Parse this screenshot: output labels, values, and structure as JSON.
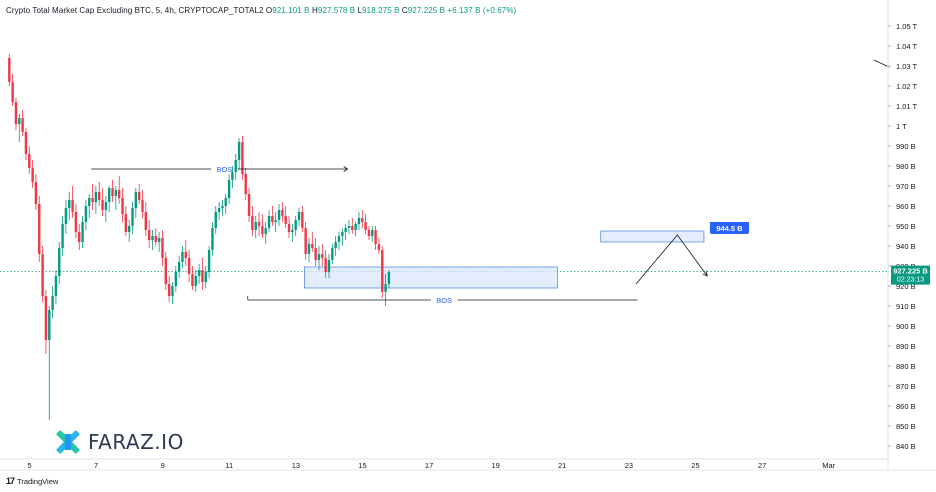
{
  "header": {
    "title": "Crypto Total Market Cap Excluding BTC, 5, 4h, CRYPTOCAP_TOTAL2",
    "o_label": "O",
    "o_value": "921.101 B",
    "h_label": "H",
    "h_value": "927.578 B",
    "l_label": "L",
    "l_value": "918.275 B",
    "c_label": "C",
    "c_value": "927.225 B",
    "change": "+6.137 B (+0.67%)"
  },
  "footer": {
    "brand": "TradingView"
  },
  "watermark": {
    "text": "FARAZ.IO"
  },
  "colors": {
    "up": "#089981",
    "down": "#f23645",
    "zone_fill": "#dbe7fb",
    "zone_stroke": "#4a7fe0",
    "price_tag": "#089981",
    "target_tag": "#2962ff"
  },
  "chart_data": {
    "type": "candlestick",
    "y_scale": "linear",
    "ylim": [
      834,
      1056
    ],
    "y_ticks": [
      "1.05 T",
      "1.04 T",
      "1.03 T",
      "1.02 T",
      "1.01 T",
      "1 T",
      "990 B",
      "980 B",
      "970 B",
      "960 B",
      "950 B",
      "940 B",
      "930 B",
      "920 B",
      "910 B",
      "900 B",
      "890 B",
      "880 B",
      "870 B",
      "860 B",
      "850 B",
      "840 B"
    ],
    "y_tick_values": [
      1050,
      1040,
      1030,
      1020,
      1010,
      1000,
      990,
      980,
      970,
      960,
      950,
      940,
      930,
      920,
      910,
      900,
      890,
      880,
      870,
      860,
      850,
      840
    ],
    "x_ticks": [
      "5",
      "7",
      "9",
      "11",
      "13",
      "15",
      "17",
      "19",
      "21",
      "23",
      "25",
      "27",
      "Mar"
    ],
    "x_tick_bars": [
      6,
      26,
      46,
      66,
      86,
      106,
      126,
      146,
      166,
      186,
      206,
      226,
      246
    ],
    "last_price": "927.225 B",
    "last_price_value": 927.2,
    "countdown": "02:23:13",
    "target_label": "944.5 B",
    "target_value": 944.5,
    "bos_labels": [
      "BOS",
      "BOS"
    ],
    "candles": [
      [
        1034,
        1036,
        1020,
        1022
      ],
      [
        1022,
        1026,
        1010,
        1012
      ],
      [
        1012,
        1014,
        998,
        1001
      ],
      [
        1001,
        1006,
        992,
        1004
      ],
      [
        1004,
        1008,
        995,
        997
      ],
      [
        997,
        999,
        983,
        986
      ],
      [
        986,
        990,
        976,
        979
      ],
      [
        979,
        983,
        969,
        972
      ],
      [
        972,
        976,
        958,
        961
      ],
      [
        961,
        965,
        932,
        936
      ],
      [
        936,
        940,
        912,
        915
      ],
      [
        915,
        918,
        886,
        893
      ],
      [
        893,
        910,
        853,
        908
      ],
      [
        908,
        920,
        904,
        915
      ],
      [
        915,
        928,
        911,
        925
      ],
      [
        925,
        942,
        921,
        939
      ],
      [
        939,
        955,
        935,
        951
      ],
      [
        951,
        963,
        946,
        959
      ],
      [
        959,
        967,
        953,
        963
      ],
      [
        963,
        970,
        954,
        957
      ],
      [
        957,
        961,
        944,
        947
      ],
      [
        947,
        951,
        938,
        942
      ],
      [
        942,
        955,
        939,
        952
      ],
      [
        952,
        963,
        948,
        960
      ],
      [
        960,
        966,
        954,
        964
      ],
      [
        964,
        971,
        958,
        962
      ],
      [
        962,
        970,
        956,
        967
      ],
      [
        967,
        972,
        960,
        963
      ],
      [
        963,
        969,
        955,
        958
      ],
      [
        958,
        965,
        952,
        962
      ],
      [
        962,
        970,
        957,
        969
      ],
      [
        969,
        973,
        962,
        965
      ],
      [
        965,
        970,
        958,
        968
      ],
      [
        968,
        975,
        961,
        964
      ],
      [
        964,
        969,
        952,
        956
      ],
      [
        956,
        960,
        945,
        947
      ],
      [
        947,
        953,
        942,
        950
      ],
      [
        950,
        962,
        946,
        959
      ],
      [
        959,
        969,
        954,
        967
      ],
      [
        967,
        971,
        961,
        963
      ],
      [
        963,
        968,
        954,
        957
      ],
      [
        957,
        962,
        945,
        948
      ],
      [
        948,
        953,
        939,
        943
      ],
      [
        943,
        948,
        938,
        945
      ],
      [
        945,
        949,
        940,
        942
      ],
      [
        942,
        947,
        937,
        944
      ],
      [
        944,
        948,
        930,
        934
      ],
      [
        934,
        937,
        918,
        921
      ],
      [
        921,
        925,
        912,
        915
      ],
      [
        915,
        922,
        911,
        920
      ],
      [
        920,
        930,
        917,
        927
      ],
      [
        927,
        935,
        924,
        932
      ],
      [
        932,
        940,
        929,
        937
      ],
      [
        937,
        943,
        930,
        934
      ],
      [
        934,
        938,
        922,
        926
      ],
      [
        926,
        930,
        918,
        920
      ],
      [
        920,
        928,
        917,
        925
      ],
      [
        925,
        931,
        921,
        928
      ],
      [
        928,
        934,
        918,
        922
      ],
      [
        922,
        930,
        919,
        927
      ],
      [
        927,
        940,
        924,
        938
      ],
      [
        938,
        952,
        935,
        949
      ],
      [
        949,
        960,
        946,
        957
      ],
      [
        957,
        962,
        953,
        959
      ],
      [
        959,
        963,
        955,
        960
      ],
      [
        960,
        966,
        956,
        964
      ],
      [
        964,
        976,
        961,
        973
      ],
      [
        973,
        980,
        969,
        977
      ],
      [
        977,
        986,
        973,
        983
      ],
      [
        983,
        994,
        978,
        992
      ],
      [
        992,
        995,
        973,
        976
      ],
      [
        976,
        979,
        963,
        966
      ],
      [
        966,
        969,
        952,
        955
      ],
      [
        955,
        960,
        945,
        948
      ],
      [
        948,
        955,
        944,
        952
      ],
      [
        952,
        957,
        945,
        950
      ],
      [
        950,
        956,
        944,
        946
      ],
      [
        946,
        952,
        941,
        949
      ],
      [
        949,
        958,
        947,
        955
      ],
      [
        955,
        960,
        950,
        952
      ],
      [
        952,
        957,
        947,
        953
      ],
      [
        953,
        961,
        950,
        958
      ],
      [
        958,
        962,
        952,
        955
      ],
      [
        955,
        960,
        949,
        951
      ],
      [
        951,
        955,
        944,
        947
      ],
      [
        947,
        951,
        942,
        948
      ],
      [
        948,
        955,
        945,
        953
      ],
      [
        953,
        959,
        950,
        957
      ],
      [
        957,
        960,
        947,
        949
      ],
      [
        949,
        952,
        933,
        936
      ],
      [
        936,
        944,
        932,
        941
      ],
      [
        941,
        947,
        937,
        939
      ],
      [
        939,
        944,
        930,
        933
      ],
      [
        933,
        940,
        928,
        936
      ],
      [
        936,
        941,
        930,
        934
      ],
      [
        934,
        938,
        924,
        927
      ],
      [
        927,
        936,
        924,
        933
      ],
      [
        933,
        941,
        931,
        939
      ],
      [
        939,
        945,
        935,
        942
      ],
      [
        942,
        947,
        938,
        945
      ],
      [
        945,
        949,
        940,
        947
      ],
      [
        947,
        951,
        943,
        949
      ],
      [
        949,
        953,
        946,
        950
      ],
      [
        950,
        954,
        946,
        948
      ],
      [
        948,
        952,
        945,
        951
      ],
      [
        951,
        957,
        948,
        954
      ],
      [
        954,
        958,
        949,
        952
      ],
      [
        952,
        956,
        946,
        948
      ],
      [
        948,
        950,
        943,
        945
      ],
      [
        945,
        950,
        942,
        948
      ],
      [
        948,
        950,
        938,
        941
      ],
      [
        941,
        944,
        936,
        938
      ],
      [
        938,
        940,
        914,
        917
      ],
      [
        917,
        926,
        910,
        921
      ],
      [
        921,
        928,
        919,
        927
      ]
    ]
  }
}
